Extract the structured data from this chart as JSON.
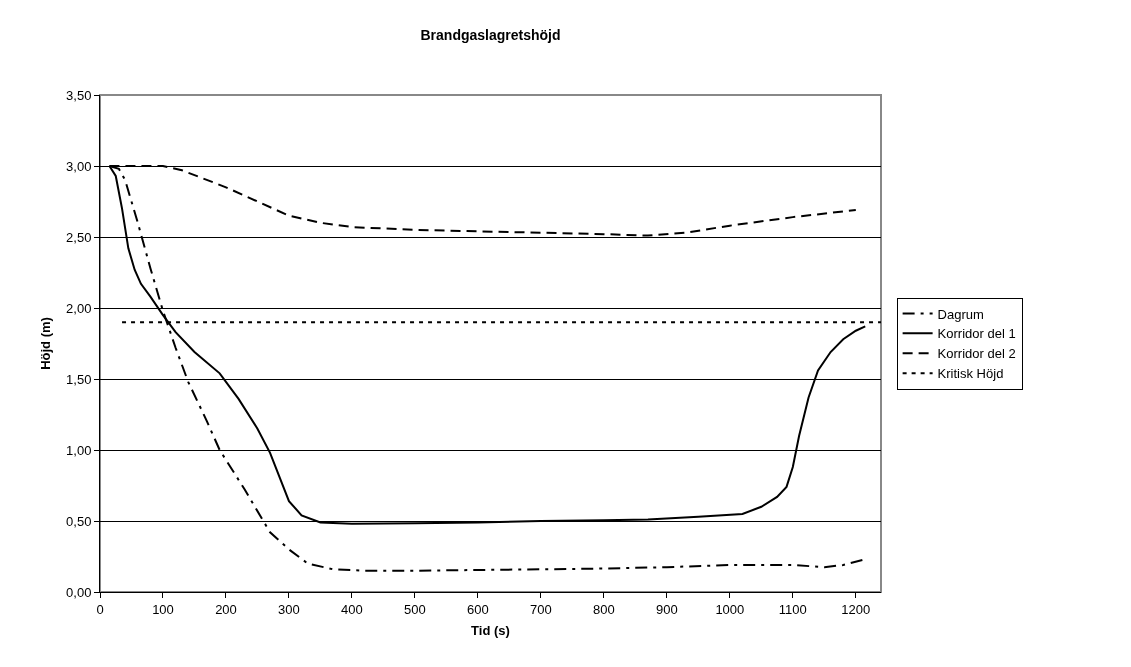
{
  "chart_data": {
    "type": "line",
    "title": "Brandgaslagretshöjd",
    "xlabel": "Tid (s)",
    "ylabel": "Höjd (m)",
    "xlim": [
      0,
      1240
    ],
    "xticks": [
      0,
      100,
      200,
      300,
      400,
      500,
      600,
      700,
      800,
      900,
      1000,
      1100,
      1200
    ],
    "ylim": [
      0,
      3.5
    ],
    "yticks": [
      {
        "value": 0,
        "label": "0,00"
      },
      {
        "value": 0.5,
        "label": "0,50"
      },
      {
        "value": 1,
        "label": "1,00"
      },
      {
        "value": 1.5,
        "label": "1,50"
      },
      {
        "value": 2,
        "label": "2,00"
      },
      {
        "value": 2.5,
        "label": "2,50"
      },
      {
        "value": 3,
        "label": "3,00"
      },
      {
        "value": 3.5,
        "label": "3,50"
      }
    ],
    "grid": "y",
    "legend": "right",
    "marker": "none",
    "series": [
      {
        "name": "Dagrum",
        "color": "#000000",
        "line_style": "dashdot",
        "x": [
          15,
          30,
          40,
          60,
          80,
          100,
          120,
          140,
          170,
          190,
          230,
          270,
          300,
          330,
          370,
          420,
          500,
          600,
          700,
          800,
          900,
          1000,
          1100,
          1150,
          1180,
          1215
        ],
        "values": [
          3.0,
          2.98,
          2.9,
          2.6,
          2.28,
          1.98,
          1.72,
          1.48,
          1.2,
          1.0,
          0.72,
          0.42,
          0.3,
          0.2,
          0.16,
          0.15,
          0.15,
          0.155,
          0.16,
          0.165,
          0.175,
          0.19,
          0.19,
          0.175,
          0.19,
          0.23
        ]
      },
      {
        "name": "Korridor del 1",
        "color": "#000000",
        "line_style": "solid",
        "x": [
          15,
          25,
          35,
          45,
          55,
          65,
          80,
          100,
          120,
          150,
          190,
          220,
          250,
          270,
          300,
          320,
          350,
          400,
          500,
          600,
          700,
          800,
          870,
          950,
          1020,
          1050,
          1075,
          1090,
          1100,
          1110,
          1125,
          1140,
          1160,
          1180,
          1200,
          1215
        ],
        "values": [
          3.0,
          2.93,
          2.7,
          2.42,
          2.27,
          2.17,
          2.08,
          1.95,
          1.83,
          1.69,
          1.54,
          1.36,
          1.15,
          0.98,
          0.64,
          0.54,
          0.49,
          0.48,
          0.485,
          0.49,
          0.5,
          0.505,
          0.51,
          0.53,
          0.55,
          0.6,
          0.67,
          0.74,
          0.88,
          1.1,
          1.37,
          1.56,
          1.69,
          1.78,
          1.84,
          1.87
        ]
      },
      {
        "name": "Korridor del 2",
        "color": "#000000",
        "line_style": "dashed",
        "x": [
          15,
          100,
          130,
          200,
          250,
          300,
          350,
          400,
          500,
          600,
          700,
          800,
          870,
          930,
          1000,
          1100,
          1200
        ],
        "values": [
          3.0,
          3.0,
          2.97,
          2.85,
          2.75,
          2.65,
          2.6,
          2.57,
          2.55,
          2.54,
          2.53,
          2.52,
          2.51,
          2.53,
          2.58,
          2.64,
          2.69
        ]
      },
      {
        "name": "Kritisk Höjd",
        "color": "#000000",
        "line_style": "dotted",
        "x": [
          35,
          1240
        ],
        "values": [
          1.9,
          1.9
        ]
      }
    ]
  }
}
